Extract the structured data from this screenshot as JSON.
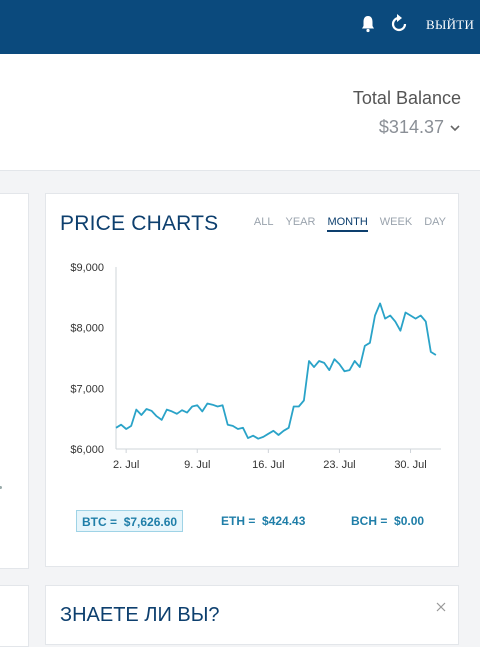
{
  "header": {
    "logout_label": "ВЫЙТИ",
    "icons": [
      "bell-icon",
      "refresh-icon"
    ],
    "bg_color": "#0b4a7d"
  },
  "balance": {
    "title": "Total Balance",
    "value": "$314.37"
  },
  "price_charts": {
    "title": "PRICE CHARTS",
    "ranges": [
      "ALL",
      "YEAR",
      "MONTH",
      "WEEK",
      "DAY"
    ],
    "active_range": "MONTH",
    "prices": [
      {
        "label": "BTC =",
        "value": "$7,626.60",
        "selected": true
      },
      {
        "label": "ETH =",
        "value": "$424.43",
        "selected": false
      },
      {
        "label": "BCH =",
        "value": "$0.00",
        "selected": false
      }
    ]
  },
  "chart_data": {
    "type": "line",
    "xlabel": "",
    "ylabel": "",
    "ylim": [
      6000,
      9000
    ],
    "xlim": [
      0,
      32
    ],
    "y_ticks": [
      6000,
      7000,
      8000,
      9000
    ],
    "y_tick_labels": [
      "$6,000",
      "$7,000",
      "$8,000",
      "$9,000"
    ],
    "x_ticks": [
      1,
      8,
      15,
      22,
      29
    ],
    "x_tick_labels": [
      "2. Jul",
      "9. Jul",
      "16. Jul",
      "23. Jul",
      "30. Jul"
    ],
    "color": "#2aa3c8",
    "series": [
      {
        "x": [
          0,
          0.5,
          1,
          1.5,
          2,
          2.5,
          3,
          3.5,
          4,
          4.5,
          5,
          5.5,
          6,
          6.5,
          7,
          7.5,
          8,
          8.5,
          9,
          9.5,
          10,
          10.5,
          11,
          11.5,
          12,
          12.5,
          13,
          13.5,
          14,
          14.5,
          15,
          15.5,
          16,
          16.5,
          17,
          17.5,
          18,
          18.5,
          19,
          19.5,
          20,
          20.5,
          21,
          21.5,
          22,
          22.5,
          23,
          23.5,
          24,
          24.5,
          25,
          25.5,
          26,
          26.5,
          27,
          27.5,
          28,
          28.5,
          29,
          29.5,
          30,
          30.5,
          31,
          31.5
        ],
        "y": [
          6350,
          6400,
          6330,
          6380,
          6650,
          6560,
          6660,
          6630,
          6540,
          6480,
          6650,
          6620,
          6580,
          6640,
          6600,
          6700,
          6720,
          6620,
          6750,
          6730,
          6700,
          6720,
          6400,
          6380,
          6330,
          6350,
          6180,
          6220,
          6170,
          6200,
          6250,
          6300,
          6230,
          6300,
          6350,
          6700,
          6700,
          6800,
          7450,
          7350,
          7450,
          7420,
          7300,
          7480,
          7400,
          7280,
          7300,
          7450,
          7350,
          7700,
          7750,
          8200,
          8400,
          8150,
          8200,
          8100,
          7950,
          8250,
          8200,
          8150,
          8200,
          8100,
          7600,
          7550
        ]
      }
    ]
  },
  "did_you_know": {
    "title": "ЗНАЕТЕ ЛИ ВЫ?"
  }
}
